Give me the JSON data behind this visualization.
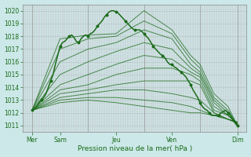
{
  "xlabel": "Pression niveau de la mer( hPa )",
  "bg_color": "#cce8e8",
  "grid_color_v": "#d4a0b0",
  "grid_color_h": "#b8c8c8",
  "line_color": "#1a6b1a",
  "axis_label_color": "#1a6b1a",
  "tick_color": "#1a6b1a",
  "ylim": [
    1010.5,
    1020.5
  ],
  "yticks": [
    1011,
    1012,
    1013,
    1014,
    1015,
    1016,
    1017,
    1018,
    1019,
    1020
  ],
  "xlim": [
    0,
    96
  ],
  "day_lines": [
    4,
    28,
    52,
    76,
    92
  ],
  "xtick_positions": [
    4,
    16,
    40,
    64,
    92
  ],
  "xtick_labels": [
    "Mer",
    "Sam",
    "Jeu",
    "Ven",
    "Dim"
  ],
  "lines": [
    [
      [
        4,
        1012.2
      ],
      [
        16,
        1017.8
      ],
      [
        28,
        1018.1
      ],
      [
        40,
        1018.2
      ],
      [
        52,
        1020.0
      ],
      [
        64,
        1018.5
      ],
      [
        72,
        1016.5
      ],
      [
        76,
        1015.8
      ],
      [
        82,
        1013.5
      ],
      [
        88,
        1012.5
      ],
      [
        92,
        1011.0
      ]
    ],
    [
      [
        4,
        1012.2
      ],
      [
        16,
        1017.0
      ],
      [
        28,
        1017.8
      ],
      [
        40,
        1018.0
      ],
      [
        52,
        1019.2
      ],
      [
        64,
        1018.2
      ],
      [
        72,
        1016.2
      ],
      [
        76,
        1015.5
      ],
      [
        82,
        1013.2
      ],
      [
        88,
        1012.2
      ],
      [
        92,
        1011.1
      ]
    ],
    [
      [
        4,
        1012.2
      ],
      [
        16,
        1016.0
      ],
      [
        28,
        1017.0
      ],
      [
        40,
        1017.5
      ],
      [
        52,
        1018.5
      ],
      [
        64,
        1017.8
      ],
      [
        72,
        1015.8
      ],
      [
        76,
        1015.2
      ],
      [
        82,
        1013.0
      ],
      [
        88,
        1012.0
      ],
      [
        92,
        1011.1
      ]
    ],
    [
      [
        4,
        1012.2
      ],
      [
        16,
        1015.0
      ],
      [
        28,
        1016.0
      ],
      [
        40,
        1016.8
      ],
      [
        52,
        1017.5
      ],
      [
        64,
        1017.0
      ],
      [
        72,
        1015.5
      ],
      [
        76,
        1015.0
      ],
      [
        82,
        1012.8
      ],
      [
        88,
        1011.8
      ],
      [
        92,
        1011.1
      ]
    ],
    [
      [
        4,
        1012.2
      ],
      [
        16,
        1014.2
      ],
      [
        28,
        1015.0
      ],
      [
        40,
        1015.8
      ],
      [
        52,
        1016.5
      ],
      [
        64,
        1016.2
      ],
      [
        72,
        1015.2
      ],
      [
        76,
        1014.8
      ],
      [
        82,
        1012.5
      ],
      [
        88,
        1011.8
      ],
      [
        92,
        1011.2
      ]
    ],
    [
      [
        4,
        1012.2
      ],
      [
        16,
        1013.8
      ],
      [
        28,
        1014.2
      ],
      [
        40,
        1015.0
      ],
      [
        52,
        1015.5
      ],
      [
        64,
        1015.5
      ],
      [
        72,
        1015.0
      ],
      [
        76,
        1014.5
      ],
      [
        82,
        1012.2
      ],
      [
        88,
        1011.8
      ],
      [
        92,
        1011.2
      ]
    ],
    [
      [
        4,
        1012.2
      ],
      [
        16,
        1013.5
      ],
      [
        28,
        1013.8
      ],
      [
        40,
        1014.2
      ],
      [
        52,
        1014.5
      ],
      [
        64,
        1014.5
      ],
      [
        72,
        1014.5
      ],
      [
        76,
        1014.2
      ],
      [
        82,
        1012.0
      ],
      [
        88,
        1011.5
      ],
      [
        92,
        1011.2
      ]
    ],
    [
      [
        4,
        1012.2
      ],
      [
        16,
        1013.2
      ],
      [
        28,
        1013.5
      ],
      [
        40,
        1013.8
      ],
      [
        52,
        1013.8
      ],
      [
        64,
        1013.5
      ],
      [
        72,
        1013.2
      ],
      [
        76,
        1013.0
      ],
      [
        82,
        1012.0
      ],
      [
        88,
        1011.5
      ],
      [
        92,
        1011.3
      ]
    ],
    [
      [
        4,
        1012.2
      ],
      [
        16,
        1013.0
      ],
      [
        28,
        1013.2
      ],
      [
        40,
        1013.2
      ],
      [
        52,
        1013.0
      ],
      [
        64,
        1012.8
      ],
      [
        72,
        1012.5
      ],
      [
        76,
        1012.2
      ],
      [
        82,
        1011.8
      ],
      [
        88,
        1011.5
      ],
      [
        92,
        1011.2
      ]
    ],
    [
      [
        4,
        1012.2
      ],
      [
        16,
        1012.8
      ],
      [
        28,
        1013.0
      ],
      [
        40,
        1012.8
      ],
      [
        52,
        1012.5
      ],
      [
        64,
        1012.2
      ],
      [
        72,
        1012.0
      ],
      [
        76,
        1012.0
      ],
      [
        82,
        1011.8
      ],
      [
        88,
        1011.5
      ],
      [
        92,
        1011.2
      ]
    ]
  ],
  "main_line": [
    [
      4,
      1012.2
    ],
    [
      5,
      1012.3
    ],
    [
      6,
      1012.5
    ],
    [
      7,
      1012.8
    ],
    [
      8,
      1013.0
    ],
    [
      9,
      1013.2
    ],
    [
      10,
      1013.5
    ],
    [
      11,
      1014.0
    ],
    [
      12,
      1014.5
    ],
    [
      13,
      1015.0
    ],
    [
      14,
      1015.8
    ],
    [
      15,
      1016.5
    ],
    [
      16,
      1017.2
    ],
    [
      17,
      1017.5
    ],
    [
      18,
      1017.6
    ],
    [
      19,
      1017.8
    ],
    [
      20,
      1018.0
    ],
    [
      21,
      1018.1
    ],
    [
      22,
      1017.9
    ],
    [
      23,
      1017.6
    ],
    [
      24,
      1017.5
    ],
    [
      25,
      1017.8
    ],
    [
      26,
      1018.0
    ],
    [
      27,
      1018.1
    ],
    [
      28,
      1018.0
    ],
    [
      29,
      1018.2
    ],
    [
      30,
      1018.3
    ],
    [
      31,
      1018.5
    ],
    [
      32,
      1018.8
    ],
    [
      33,
      1019.0
    ],
    [
      34,
      1019.2
    ],
    [
      35,
      1019.5
    ],
    [
      36,
      1019.7
    ],
    [
      37,
      1019.9
    ],
    [
      38,
      1020.0
    ],
    [
      39,
      1020.0
    ],
    [
      40,
      1019.9
    ],
    [
      41,
      1019.8
    ],
    [
      42,
      1019.6
    ],
    [
      43,
      1019.4
    ],
    [
      44,
      1019.2
    ],
    [
      45,
      1019.0
    ],
    [
      46,
      1018.8
    ],
    [
      47,
      1018.6
    ],
    [
      48,
      1018.5
    ],
    [
      49,
      1018.5
    ],
    [
      50,
      1018.5
    ],
    [
      51,
      1018.4
    ],
    [
      52,
      1018.2
    ],
    [
      53,
      1018.0
    ],
    [
      54,
      1017.8
    ],
    [
      55,
      1017.5
    ],
    [
      56,
      1017.2
    ],
    [
      57,
      1017.0
    ],
    [
      58,
      1016.8
    ],
    [
      59,
      1016.6
    ],
    [
      60,
      1016.5
    ],
    [
      61,
      1016.3
    ],
    [
      62,
      1016.0
    ],
    [
      63,
      1015.8
    ],
    [
      64,
      1015.8
    ],
    [
      65,
      1015.6
    ],
    [
      66,
      1015.5
    ],
    [
      67,
      1015.3
    ],
    [
      68,
      1015.2
    ],
    [
      69,
      1015.0
    ],
    [
      70,
      1014.8
    ],
    [
      71,
      1014.5
    ],
    [
      72,
      1014.2
    ],
    [
      73,
      1013.8
    ],
    [
      74,
      1013.5
    ],
    [
      75,
      1013.2
    ],
    [
      76,
      1012.8
    ],
    [
      77,
      1012.5
    ],
    [
      78,
      1012.3
    ],
    [
      79,
      1012.2
    ],
    [
      80,
      1012.0
    ],
    [
      81,
      1011.8
    ],
    [
      82,
      1011.8
    ],
    [
      83,
      1011.8
    ],
    [
      84,
      1011.8
    ],
    [
      85,
      1012.0
    ],
    [
      86,
      1012.1
    ],
    [
      87,
      1012.2
    ],
    [
      88,
      1012.0
    ],
    [
      89,
      1011.8
    ],
    [
      90,
      1011.5
    ],
    [
      91,
      1011.2
    ],
    [
      92,
      1011.0
    ]
  ]
}
